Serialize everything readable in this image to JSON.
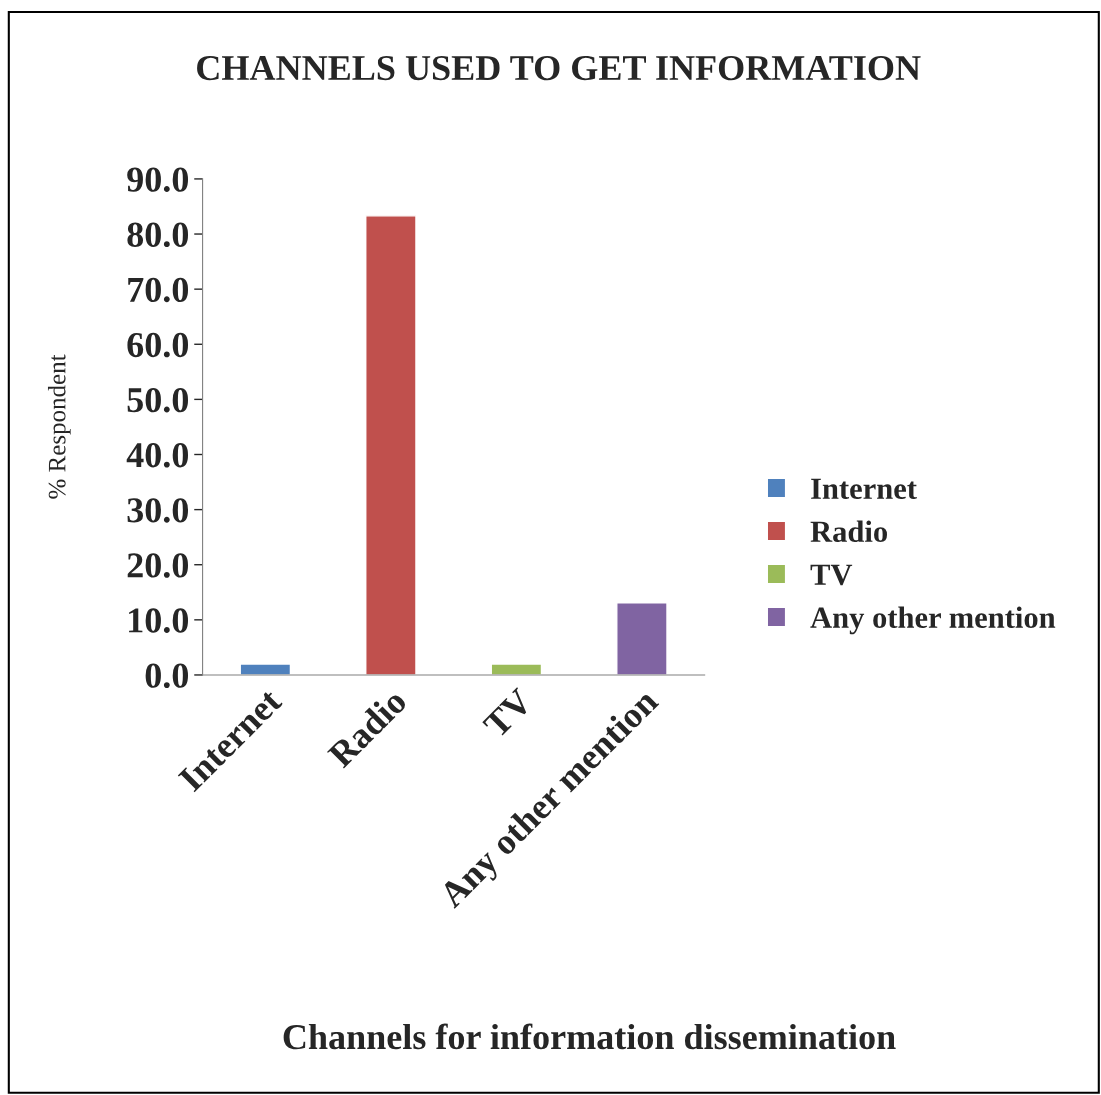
{
  "chart_data": {
    "type": "bar",
    "title": "CHANNELS USED TO GET INFORMATION",
    "xlabel": "Channels for information dissemination",
    "ylabel": "% Respondent",
    "categories": [
      "Internet",
      "Radio",
      "TV",
      "Any other mention"
    ],
    "series": [
      {
        "name": "Internet",
        "color": "#4f81bd",
        "values": [
          2.0,
          null,
          null,
          null
        ]
      },
      {
        "name": "Radio",
        "color": "#c0504d",
        "values": [
          null,
          83.3,
          null,
          null
        ]
      },
      {
        "name": "TV",
        "color": "#9bbb59",
        "values": [
          null,
          null,
          2.0,
          null
        ]
      },
      {
        "name": "Any other mention",
        "color": "#8064a2",
        "values": [
          null,
          null,
          null,
          13.1
        ]
      }
    ],
    "ylim": [
      0,
      90
    ],
    "yticks": [
      {
        "value": 0,
        "label": "0.0"
      },
      {
        "value": 10,
        "label": "10.0"
      },
      {
        "value": 20,
        "label": "20.0"
      },
      {
        "value": 30,
        "label": "30.0"
      },
      {
        "value": 40,
        "label": "40.0"
      },
      {
        "value": 50,
        "label": "50.0"
      },
      {
        "value": 60,
        "label": "60.0"
      },
      {
        "value": 70,
        "label": "70.0"
      },
      {
        "value": 80,
        "label": "80.0"
      },
      {
        "value": 90,
        "label": "90.0"
      }
    ],
    "grid": false,
    "legend": "right"
  }
}
